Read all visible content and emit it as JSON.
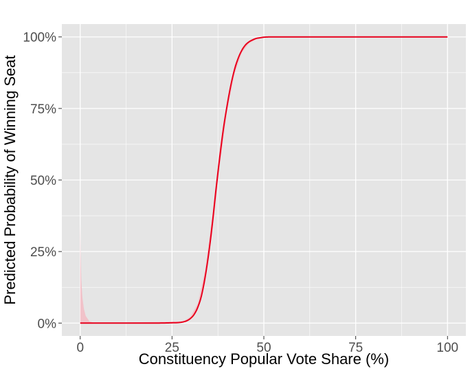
{
  "chart_data": {
    "type": "line",
    "title": "",
    "xlabel": "Constituency Popular Vote Share (%)",
    "ylabel": "Predicted Probability of Winning Seat",
    "xlim": [
      -5,
      105
    ],
    "ylim": [
      -0.045,
      1.045
    ],
    "x_ticks": [
      0,
      25,
      50,
      75,
      100
    ],
    "x_tick_labels": [
      "0",
      "25",
      "50",
      "75",
      "100"
    ],
    "y_ticks": [
      0,
      0.25,
      0.5,
      0.75,
      1.0
    ],
    "y_tick_labels": [
      "0%",
      "25%",
      "50%",
      "75%",
      "100%"
    ],
    "grid": true,
    "legend": "none",
    "colors": {
      "panel": "#e5e5e5",
      "grid": "#ffffff",
      "line": "#e8001c",
      "ribbon": "#f4b6bf"
    },
    "series": [
      {
        "x": [
          0,
          5,
          10,
          15,
          20,
          25,
          27,
          28,
          29,
          30,
          31,
          32,
          33,
          34,
          35,
          36,
          37,
          38,
          39,
          40,
          41,
          42,
          43,
          44,
          45,
          46,
          47,
          48,
          49,
          50,
          52,
          55,
          60,
          70,
          80,
          90,
          100
        ],
        "y": [
          0,
          0,
          0,
          0,
          0,
          0.001,
          0.002,
          0.004,
          0.008,
          0.016,
          0.03,
          0.055,
          0.095,
          0.16,
          0.245,
          0.35,
          0.47,
          0.58,
          0.68,
          0.76,
          0.83,
          0.885,
          0.925,
          0.953,
          0.972,
          0.983,
          0.99,
          0.995,
          0.997,
          0.999,
          1.0,
          1.0,
          1.0,
          1.0,
          1.0,
          1.0,
          1.0
        ]
      }
    ],
    "ribbon": {
      "x": [
        0,
        0.1,
        0.3,
        0.6,
        1.0,
        1.5,
        2.5,
        4,
        28,
        30,
        32,
        34,
        36,
        38,
        40,
        42,
        44,
        46,
        48,
        50,
        52,
        100
      ],
      "lower": [
        0,
        0,
        0,
        0,
        0,
        0,
        0,
        0,
        0.003,
        0.012,
        0.045,
        0.14,
        0.32,
        0.55,
        0.74,
        0.87,
        0.945,
        0.978,
        0.992,
        0.997,
        0.999,
        1.0
      ],
      "upper": [
        0.35,
        0.25,
        0.15,
        0.09,
        0.05,
        0.025,
        0.006,
        0,
        0.006,
        0.022,
        0.068,
        0.185,
        0.38,
        0.61,
        0.78,
        0.9,
        0.96,
        0.987,
        0.996,
        0.999,
        1.0,
        1.0
      ]
    }
  }
}
